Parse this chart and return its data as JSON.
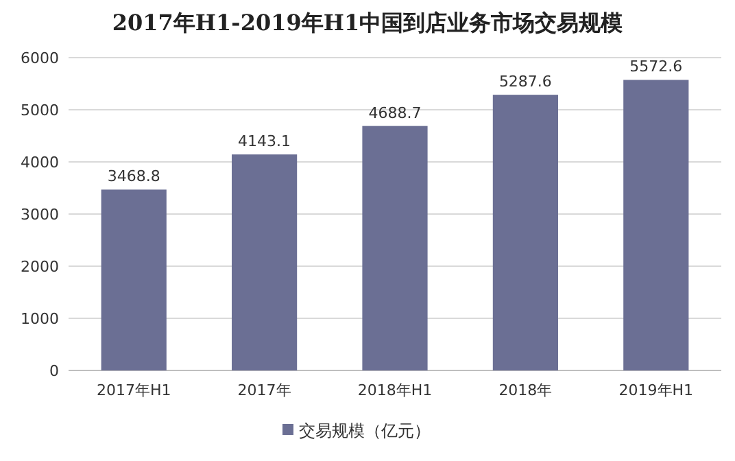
{
  "chart_data": {
    "type": "bar",
    "title": "2017年H1-2019年H1中国到店业务市场交易规模",
    "categories": [
      "2017年H1",
      "2017年",
      "2018年H1",
      "2018年",
      "2019年H1"
    ],
    "series": [
      {
        "name": "交易规模（亿元）",
        "color": "#6b6f94",
        "values": [
          3468.8,
          4143.1,
          4688.7,
          5287.6,
          5572.6
        ]
      }
    ],
    "ylim": [
      0,
      6000
    ],
    "yticks": [
      0,
      1000,
      2000,
      3000,
      4000,
      5000,
      6000
    ],
    "grid": "y",
    "legend": "bottom",
    "data_labels": true
  }
}
